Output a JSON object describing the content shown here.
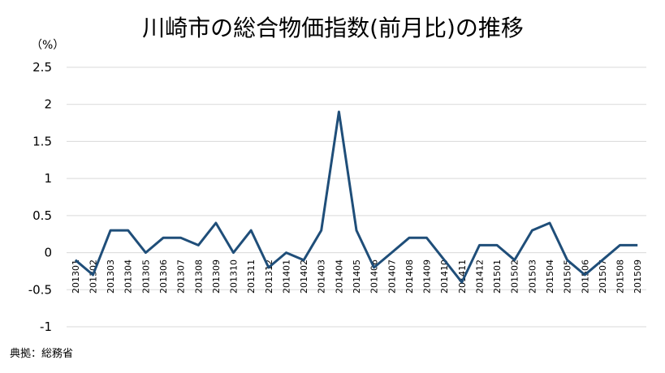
{
  "chart_data": {
    "type": "line",
    "title": "川崎市の総合物価指数(前月比)の推移",
    "unit_label": "（%）",
    "source": "典拠：総務省",
    "categories": [
      "201301",
      "201302",
      "201303",
      "201304",
      "201305",
      "201306",
      "201307",
      "201308",
      "201309",
      "201310",
      "201311",
      "201312",
      "201401",
      "201402",
      "201403",
      "201404",
      "201405",
      "201406",
      "201407",
      "201408",
      "201409",
      "201410",
      "201411",
      "201412",
      "201501",
      "201502",
      "201503",
      "201504",
      "201505",
      "201506",
      "201507",
      "201508",
      "201509"
    ],
    "values": [
      -0.1,
      -0.3,
      0.3,
      0.3,
      0.0,
      0.2,
      0.2,
      0.1,
      0.4,
      0.0,
      0.3,
      -0.2,
      0.0,
      -0.1,
      0.3,
      1.9,
      0.3,
      -0.2,
      0.0,
      0.2,
      0.2,
      -0.1,
      -0.4,
      0.1,
      0.1,
      -0.1,
      0.3,
      0.4,
      -0.1,
      -0.3,
      -0.1,
      0.1,
      0.1
    ],
    "y_ticks": [
      "2.5",
      "2",
      "1.5",
      "1",
      "0.5",
      "0",
      "-0.5",
      "-1"
    ],
    "ylim": [
      -1,
      2.5
    ],
    "grid": true,
    "line_color": "#1f4e79"
  }
}
